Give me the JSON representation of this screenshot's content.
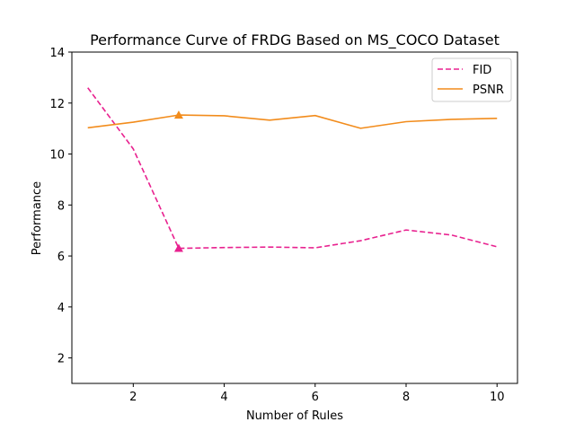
{
  "chart_data": {
    "type": "line",
    "title": "Performance Curve of FRDG Based on MS_COCO Dataset",
    "xlabel": "Number of Rules",
    "ylabel": "Performance",
    "x": [
      1,
      2,
      3,
      4,
      5,
      6,
      7,
      8,
      9,
      10
    ],
    "xlim": [
      0.65,
      10.45
    ],
    "ylim": [
      1,
      14
    ],
    "xticks": [
      2,
      4,
      6,
      8,
      10
    ],
    "yticks": [
      2,
      4,
      6,
      8,
      10,
      12,
      14
    ],
    "legend_position": "top-right",
    "series": [
      {
        "name": "FID",
        "style": "dashed",
        "color": "#e8218f",
        "values": [
          12.6,
          10.2,
          6.3,
          6.33,
          6.35,
          6.32,
          6.6,
          7.02,
          6.82,
          6.36
        ],
        "marker_index": 2,
        "marker": "triangle"
      },
      {
        "name": "PSNR",
        "style": "solid",
        "color": "#f28c1c",
        "values": [
          11.03,
          11.25,
          11.53,
          11.5,
          11.33,
          11.51,
          11.01,
          11.27,
          11.36,
          11.4
        ],
        "marker_index": 2,
        "marker": "triangle"
      }
    ]
  }
}
